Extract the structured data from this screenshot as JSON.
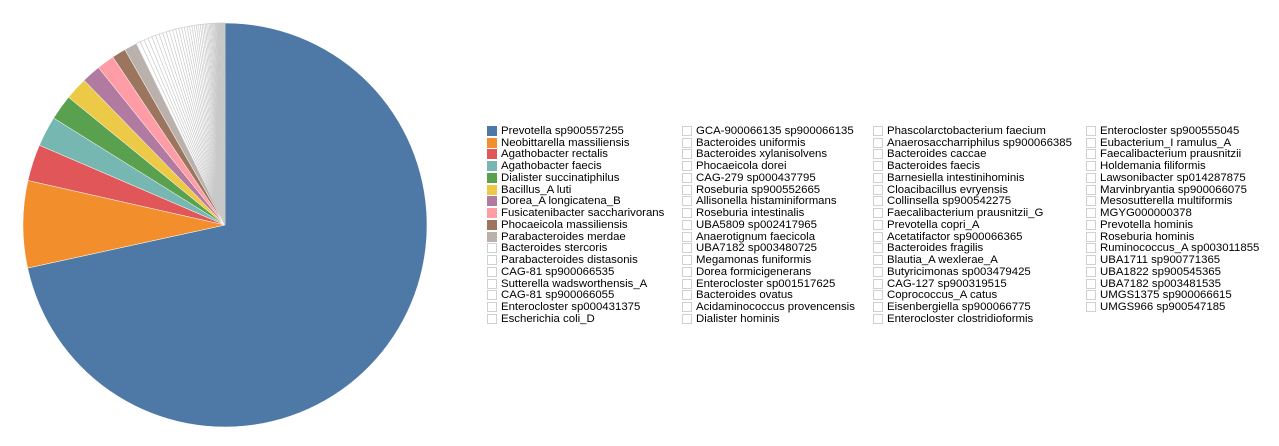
{
  "chart_data": {
    "type": "pie",
    "start_angle": "top, clockwise",
    "legend_placement": "right",
    "slices": [
      {
        "label": "Prevotella sp900557255",
        "value": 71.0,
        "color": "#4e79a7"
      },
      {
        "label": "Neobittarella massiliensis",
        "value": 6.9,
        "color": "#f28e2b"
      },
      {
        "label": "Agathobacter rectalis",
        "value": 2.9,
        "color": "#e15759"
      },
      {
        "label": "Agathobacter faecis",
        "value": 2.4,
        "color": "#76b7b2"
      },
      {
        "label": "Dialister succinatiphilus",
        "value": 2.0,
        "color": "#59a14f"
      },
      {
        "label": "Bacillus_A luti",
        "value": 1.8,
        "color": "#edc948"
      },
      {
        "label": "Dorea_A longicatena_B",
        "value": 1.5,
        "color": "#b07aa1"
      },
      {
        "label": "Fusicatenibacter saccharivorans",
        "value": 1.4,
        "color": "#ff9da7"
      },
      {
        "label": "Phocaeicola massiliensis",
        "value": 1.1,
        "color": "#9c755f"
      },
      {
        "label": "Parabacteroides merdae",
        "value": 1.0,
        "color": "#bab0ac"
      },
      {
        "label": "Bacteroides stercoris",
        "value": 0.35,
        "color": "#ffffff"
      },
      {
        "label": "Parabacteroides distasonis",
        "value": 0.34,
        "color": "#ffffff"
      },
      {
        "label": "CAG-81 sp900066535",
        "value": 0.33,
        "color": "#ffffff"
      },
      {
        "label": "Sutterella wadsworthensis_A",
        "value": 0.32,
        "color": "#ffffff"
      },
      {
        "label": "CAG-81 sp900066055",
        "value": 0.31,
        "color": "#ffffff"
      },
      {
        "label": "Enterocloster sp000431375",
        "value": 0.3,
        "color": "#ffffff"
      },
      {
        "label": "Escherichia coli_D",
        "value": 0.29,
        "color": "#ffffff"
      },
      {
        "label": "GCA-900066135 sp900066135",
        "value": 0.28,
        "color": "#ffffff"
      },
      {
        "label": "Bacteroides uniformis",
        "value": 0.27,
        "color": "#ffffff"
      },
      {
        "label": "Bacteroides xylanisolvens",
        "value": 0.26,
        "color": "#ffffff"
      },
      {
        "label": "Phocaeicola dorei",
        "value": 0.25,
        "color": "#ffffff"
      },
      {
        "label": "CAG-279 sp000437795",
        "value": 0.24,
        "color": "#ffffff"
      },
      {
        "label": "Roseburia sp900552665",
        "value": 0.23,
        "color": "#ffffff"
      },
      {
        "label": "Allisonella histaminiformans",
        "value": 0.22,
        "color": "#ffffff"
      },
      {
        "label": "Roseburia intestinalis",
        "value": 0.21,
        "color": "#ffffff"
      },
      {
        "label": "UBA5809 sp002417965",
        "value": 0.2,
        "color": "#ffffff"
      },
      {
        "label": "Anaerotignum faecicola",
        "value": 0.19,
        "color": "#ffffff"
      },
      {
        "label": "UBA7182 sp003480725",
        "value": 0.18,
        "color": "#ffffff"
      },
      {
        "label": "Megamonas funiformis",
        "value": 0.17,
        "color": "#ffffff"
      },
      {
        "label": "Dorea formicigenerans",
        "value": 0.16,
        "color": "#ffffff"
      },
      {
        "label": "Enterocloster sp001517625",
        "value": 0.15,
        "color": "#ffffff"
      },
      {
        "label": "Bacteroides ovatus",
        "value": 0.14,
        "color": "#ffffff"
      },
      {
        "label": "Acidaminococcus provencensis",
        "value": 0.13,
        "color": "#ffffff"
      },
      {
        "label": "Dialister hominis",
        "value": 0.12,
        "color": "#ffffff"
      },
      {
        "label": "Phascolarctobacterium faecium",
        "value": 0.11,
        "color": "#ffffff"
      },
      {
        "label": "Anaerosaccharriphilus sp900066385",
        "value": 0.1,
        "color": "#ffffff"
      },
      {
        "label": "Bacteroides caccae",
        "value": 0.1,
        "color": "#ffffff"
      },
      {
        "label": "Bacteroides faecis",
        "value": 0.09,
        "color": "#ffffff"
      },
      {
        "label": "Barnesiella intestinihominis",
        "value": 0.09,
        "color": "#ffffff"
      },
      {
        "label": "Cloacibacillus evryensis",
        "value": 0.08,
        "color": "#ffffff"
      },
      {
        "label": "Collinsella sp900542275",
        "value": 0.08,
        "color": "#ffffff"
      },
      {
        "label": "Faecalibacterium prausnitzii_G",
        "value": 0.07,
        "color": "#ffffff"
      },
      {
        "label": "Prevotella copri_A",
        "value": 0.07,
        "color": "#ffffff"
      },
      {
        "label": "Acetatifactor sp900066365",
        "value": 0.06,
        "color": "#ffffff"
      },
      {
        "label": "Bacteroides fragilis",
        "value": 0.06,
        "color": "#ffffff"
      },
      {
        "label": "Blautia_A wexlerae_A",
        "value": 0.06,
        "color": "#ffffff"
      },
      {
        "label": "Butyricimonas sp003479425",
        "value": 0.05,
        "color": "#ffffff"
      },
      {
        "label": "CAG-127 sp900319515",
        "value": 0.05,
        "color": "#ffffff"
      },
      {
        "label": "Coprococcus_A catus",
        "value": 0.05,
        "color": "#ffffff"
      },
      {
        "label": "Eisenbergiella sp900066775",
        "value": 0.04,
        "color": "#ffffff"
      },
      {
        "label": "Enterocloster clostridioformis",
        "value": 0.04,
        "color": "#ffffff"
      },
      {
        "label": "Enterocloster sp900555045",
        "value": 0.04,
        "color": "#ffffff"
      },
      {
        "label": "Eubacterium_I ramulus_A",
        "value": 0.04,
        "color": "#ffffff"
      },
      {
        "label": "Faecalibacterium prausnitzii",
        "value": 0.03,
        "color": "#ffffff"
      },
      {
        "label": "Holdemania filiformis",
        "value": 0.03,
        "color": "#ffffff"
      },
      {
        "label": "Lawsonibacter sp014287875",
        "value": 0.03,
        "color": "#ffffff"
      },
      {
        "label": "Marvinbryantia sp900066075",
        "value": 0.03,
        "color": "#ffffff"
      },
      {
        "label": "Mesosutterella multiformis",
        "value": 0.02,
        "color": "#ffffff"
      },
      {
        "label": "MGYG000000378",
        "value": 0.02,
        "color": "#ffffff"
      },
      {
        "label": "Prevotella hominis",
        "value": 0.02,
        "color": "#ffffff"
      },
      {
        "label": "Roseburia hominis",
        "value": 0.02,
        "color": "#ffffff"
      },
      {
        "label": "Ruminococcus_A sp003011855",
        "value": 0.02,
        "color": "#ffffff"
      },
      {
        "label": "UBA1711 sp900771365",
        "value": 0.01,
        "color": "#ffffff"
      },
      {
        "label": "UBA1822 sp900545365",
        "value": 0.01,
        "color": "#ffffff"
      },
      {
        "label": "UBA7182 sp003481535",
        "value": 0.01,
        "color": "#ffffff"
      },
      {
        "label": "UMGS1375 sp900066615",
        "value": 0.01,
        "color": "#ffffff"
      },
      {
        "label": "UMGS966 sp900547185",
        "value": 0.01,
        "color": "#ffffff"
      }
    ]
  }
}
